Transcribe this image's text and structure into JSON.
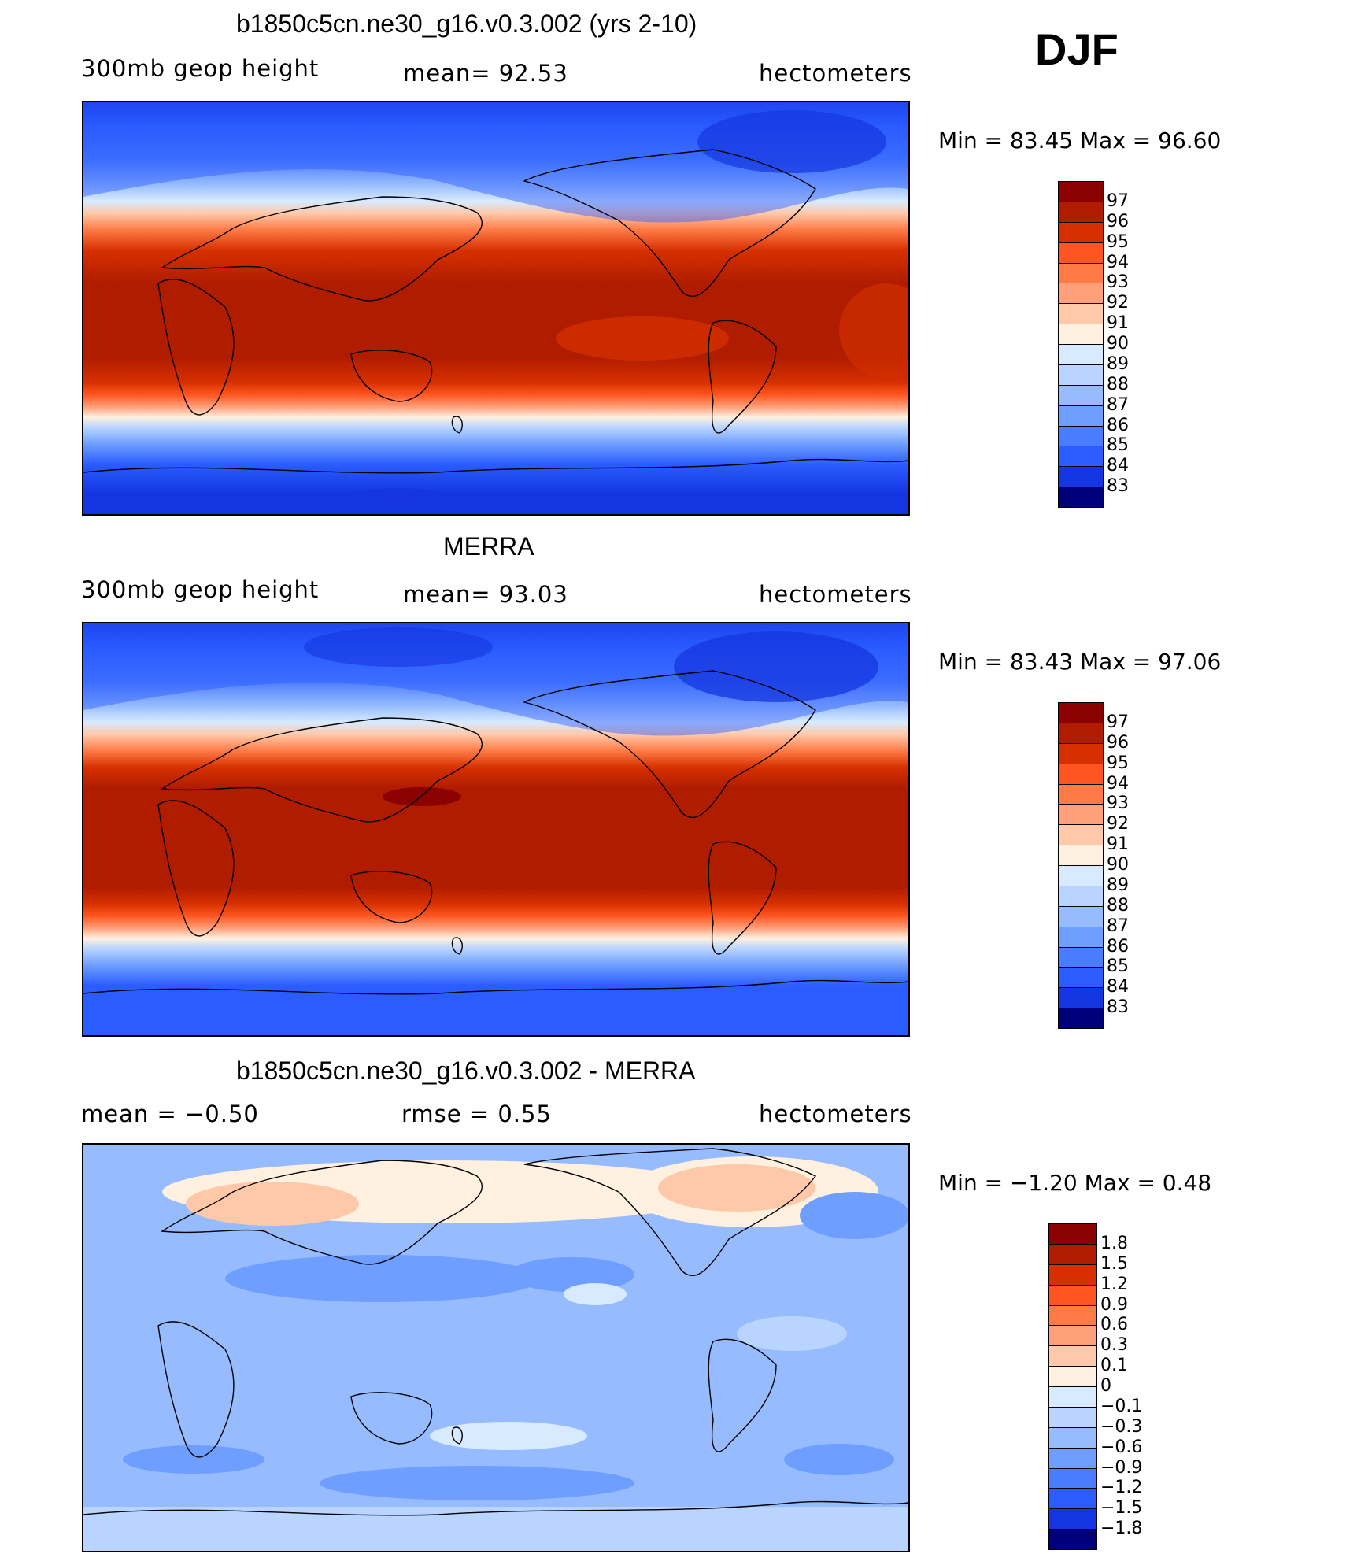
{
  "season": "DJF",
  "panels": [
    {
      "title": "b1850c5cn.ne30_g16.v0.3.002 (yrs 2-10)",
      "left": "300mb geop height",
      "center": "mean=  92.53",
      "right": "hectometers",
      "minmax": "Min =   83.45 Max =   96.60",
      "levels": [
        "97",
        "96",
        "95",
        "94",
        "93",
        "92",
        "91",
        "90",
        "89",
        "88",
        "87",
        "86",
        "85",
        "84",
        "83"
      ],
      "colors": [
        "#8b0000",
        "#b01c00",
        "#d63000",
        "#ff5520",
        "#ff7a45",
        "#ffa07a",
        "#ffc8a8",
        "#fff0e0",
        "#d8eaff",
        "#b8d4ff",
        "#96bcff",
        "#6e9eff",
        "#4a7cff",
        "#2a5cff",
        "#1436e0",
        "#00007a"
      ]
    },
    {
      "title": "MERRA",
      "left": "300mb geop height",
      "center": "mean=  93.03",
      "right": "hectometers",
      "minmax": "Min =   83.43 Max =   97.06",
      "levels": [
        "97",
        "96",
        "95",
        "94",
        "93",
        "92",
        "91",
        "90",
        "89",
        "88",
        "87",
        "86",
        "85",
        "84",
        "83"
      ],
      "colors": [
        "#8b0000",
        "#b01c00",
        "#d63000",
        "#ff5520",
        "#ff7a45",
        "#ffa07a",
        "#ffc8a8",
        "#fff0e0",
        "#d8eaff",
        "#b8d4ff",
        "#96bcff",
        "#6e9eff",
        "#4a7cff",
        "#2a5cff",
        "#1436e0",
        "#00007a"
      ]
    },
    {
      "title": "b1850c5cn.ne30_g16.v0.3.002 - MERRA",
      "left": "mean =   −0.50",
      "center": "rmse =    0.55",
      "right": "hectometers",
      "minmax": "Min =   −1.20 Max =    0.48",
      "levels": [
        "1.8",
        "1.5",
        "1.2",
        "0.9",
        "0.6",
        "0.3",
        "0.1",
        "0",
        "−0.1",
        "−0.3",
        "−0.6",
        "−0.9",
        "−1.2",
        "−1.5",
        "−1.8"
      ],
      "colors": [
        "#8b0000",
        "#b01c00",
        "#d63000",
        "#ff5520",
        "#ff7a45",
        "#ffa07a",
        "#ffc8a8",
        "#fff0e0",
        "#d8eaff",
        "#b8d4ff",
        "#96bcff",
        "#6e9eff",
        "#4a7cff",
        "#2a5cff",
        "#1436e0",
        "#00007a"
      ]
    }
  ]
}
